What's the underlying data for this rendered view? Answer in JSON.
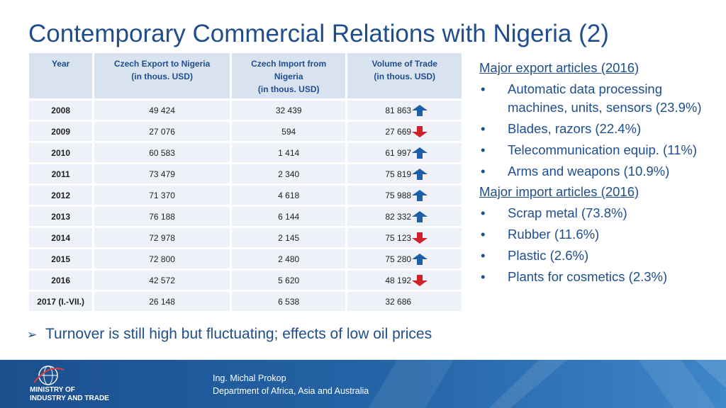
{
  "title": "Contemporary Commercial Relations with Nigeria (2)",
  "table": {
    "headers": [
      {
        "line1": "Year",
        "line2": "",
        "line3": ""
      },
      {
        "line1": "Czech Export to Nigeria",
        "line2": "(in thous. USD)",
        "line3": ""
      },
      {
        "line1": "Czech Import from",
        "line2": "Nigeria",
        "line3": "(in thous. USD)"
      },
      {
        "line1": "Volume of Trade",
        "line2": "(in thous. USD)",
        "line3": ""
      }
    ],
    "rows": [
      {
        "year": "2008",
        "export": "49 424",
        "import": "32 439",
        "volume": "81 863",
        "trend": "up"
      },
      {
        "year": "2009",
        "export": "27 076",
        "import": "594",
        "volume": "27 669",
        "trend": "down"
      },
      {
        "year": "2010",
        "export": "60 583",
        "import": "1 414",
        "volume": "61 997",
        "trend": "up"
      },
      {
        "year": "2011",
        "export": "73 479",
        "import": "2 340",
        "volume": "75 819",
        "trend": "up"
      },
      {
        "year": "2012",
        "export": "71 370",
        "import": "4 618",
        "volume": "75 988",
        "trend": "up"
      },
      {
        "year": "2013",
        "export": "76 188",
        "import": "6 144",
        "volume": "82 332",
        "trend": "up"
      },
      {
        "year": "2014",
        "export": "72 978",
        "import": "2 145",
        "volume": "75 123",
        "trend": "down"
      },
      {
        "year": "2015",
        "export": "72 800",
        "import": "2 480",
        "volume": "75 280",
        "trend": "up"
      },
      {
        "year": "2016",
        "export": "42 572",
        "import": "5 620",
        "volume": "48 192",
        "trend": "down"
      },
      {
        "year": "2017 (I.-VII.)",
        "export": "26 148",
        "import": "6 538",
        "volume": "32 686",
        "trend": ""
      }
    ]
  },
  "exports": {
    "heading": "Major export articles (2016)",
    "items": [
      "Automatic data processing machines, units, sensors (23.9%)",
      "Blades, razors (22.4%)",
      "Telecommunication equip. (11%)",
      "Arms and weapons (10.9%)"
    ]
  },
  "imports": {
    "heading": "Major import articles (2016)",
    "items": [
      "Scrap metal (73.8%)",
      "Rubber (11.6%)",
      "Plastic (2.6%)",
      "Plants for cosmetics (2.3%)"
    ]
  },
  "bullet": "•",
  "note": "Turnover is still high but fluctuating; effects of low oil prices",
  "note_marker": "➢",
  "footer": {
    "ministry_line1": "MINISTRY OF",
    "ministry_line2": "INDUSTRY AND TRADE",
    "author": "Ing. Michal Prokop",
    "department": "Department of Africa, Asia and Australia"
  },
  "colors": {
    "title": "#1f4e8c",
    "arrow_up": "#1f5fa8",
    "arrow_down": "#d0202a",
    "footer": "#1b4f8e"
  }
}
